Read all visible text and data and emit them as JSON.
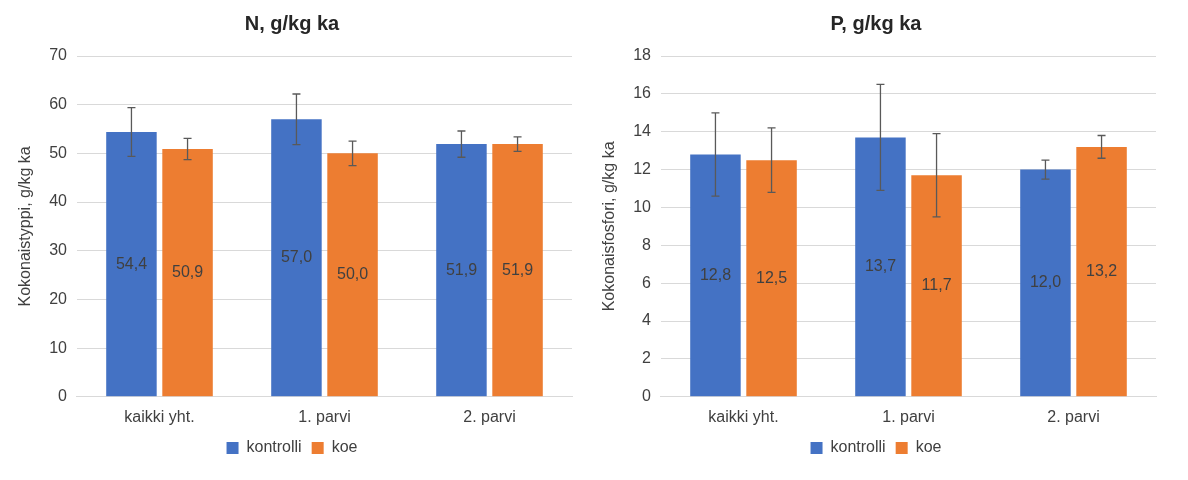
{
  "chart_data": [
    {
      "type": "bar",
      "title": "N, g/kg ka",
      "ylabel": "Kokonaistyppi, g/kg ka",
      "categories": [
        "kaikki yht.",
        "1. parvi",
        "2. parvi"
      ],
      "series": [
        {
          "name": "kontrolli",
          "color": "#4472c4",
          "values": [
            54.4,
            57.0,
            51.9
          ],
          "value_labels": [
            "54,4",
            "57,0",
            "51,9"
          ],
          "errors": [
            5.0,
            5.2,
            2.7
          ]
        },
        {
          "name": "koe",
          "color": "#ed7d31",
          "values": [
            50.9,
            50.0,
            51.9
          ],
          "value_labels": [
            "50,9",
            "50,0",
            "51,9"
          ],
          "errors": [
            2.2,
            2.5,
            1.5
          ]
        }
      ],
      "ylim": [
        0,
        70
      ],
      "yticks": [
        0,
        10,
        20,
        30,
        40,
        50,
        60,
        70
      ],
      "grid": "y",
      "legend": "bottom"
    },
    {
      "type": "bar",
      "title": "P, g/kg ka",
      "ylabel": "Kokonaisfosfori, g/kg ka",
      "categories": [
        "kaikki yht.",
        "1. parvi",
        "2. parvi"
      ],
      "series": [
        {
          "name": "kontrolli",
          "color": "#4472c4",
          "values": [
            12.8,
            13.7,
            12.0
          ],
          "value_labels": [
            "12,8",
            "13,7",
            "12,0"
          ],
          "errors": [
            2.2,
            2.8,
            0.5
          ]
        },
        {
          "name": "koe",
          "color": "#ed7d31",
          "values": [
            12.5,
            11.7,
            13.2
          ],
          "value_labels": [
            "12,5",
            "11,7",
            "13,2"
          ],
          "errors": [
            1.7,
            2.2,
            0.6
          ]
        }
      ],
      "ylim": [
        0,
        18
      ],
      "yticks": [
        0,
        2,
        4,
        6,
        8,
        10,
        12,
        14,
        16,
        18
      ],
      "grid": "y",
      "legend": "bottom"
    }
  ]
}
